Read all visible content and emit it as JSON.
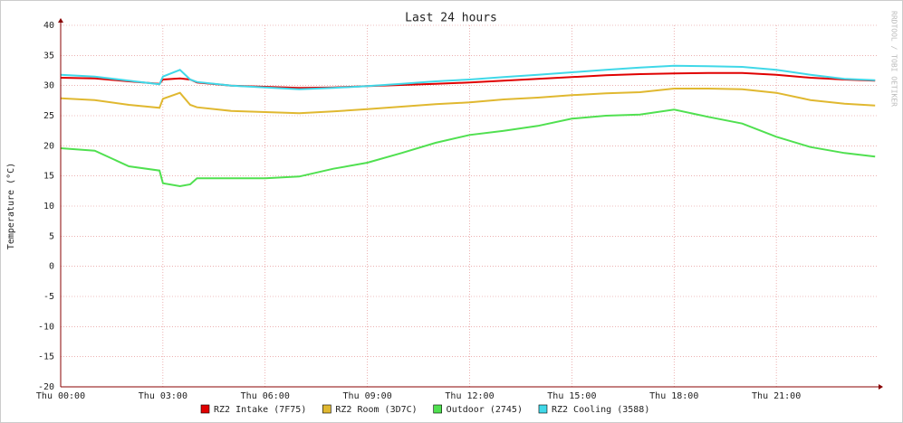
{
  "chart_data": {
    "type": "line",
    "title": "Last 24 hours",
    "ylabel": "Temperature (°C)",
    "watermark": "RRDTOOL / TOBI OETIKER",
    "x": [
      0,
      1,
      2,
      2.9,
      3,
      3.5,
      3.8,
      4,
      5,
      6,
      7,
      8,
      9,
      10,
      11,
      12,
      13,
      14,
      15,
      16,
      17,
      18,
      19,
      20,
      21,
      22,
      23,
      23.9
    ],
    "xlim": [
      0,
      24
    ],
    "xticks": [
      {
        "value": 0,
        "label": "Thu 00:00"
      },
      {
        "value": 3,
        "label": "Thu 03:00"
      },
      {
        "value": 6,
        "label": "Thu 06:00"
      },
      {
        "value": 9,
        "label": "Thu 09:00"
      },
      {
        "value": 12,
        "label": "Thu 12:00"
      },
      {
        "value": 15,
        "label": "Thu 15:00"
      },
      {
        "value": 18,
        "label": "Thu 18:00"
      },
      {
        "value": 21,
        "label": "Thu 21:00"
      }
    ],
    "ylim": [
      -20,
      40
    ],
    "yticks": [
      -20,
      -15,
      -10,
      -5,
      0,
      5,
      10,
      15,
      20,
      25,
      30,
      35,
      40
    ],
    "grid": true,
    "series": [
      {
        "name": "RZ2 Intake (7F75)",
        "color": "#e00000",
        "values": [
          31.3,
          31.2,
          30.7,
          30.3,
          31.0,
          31.2,
          31.0,
          30.5,
          30.0,
          29.8,
          29.6,
          29.7,
          29.9,
          30.1,
          30.3,
          30.5,
          30.8,
          31.1,
          31.4,
          31.7,
          31.9,
          32.0,
          32.1,
          32.1,
          31.8,
          31.3,
          31.0,
          30.8
        ]
      },
      {
        "name": "RZ2 Room (3D7C)",
        "color": "#e0b830",
        "values": [
          27.9,
          27.6,
          26.8,
          26.3,
          27.8,
          28.8,
          26.8,
          26.4,
          25.8,
          25.6,
          25.4,
          25.7,
          26.1,
          26.5,
          26.9,
          27.2,
          27.7,
          28.0,
          28.4,
          28.7,
          28.9,
          29.5,
          29.5,
          29.4,
          28.8,
          27.6,
          27.0,
          26.7
        ]
      },
      {
        "name": "Outdoor (2745)",
        "color": "#50e050",
        "values": [
          19.6,
          19.2,
          16.6,
          15.9,
          13.8,
          13.3,
          13.6,
          14.6,
          14.6,
          14.6,
          14.9,
          16.2,
          17.2,
          18.8,
          20.5,
          21.8,
          22.5,
          23.3,
          24.5,
          25.0,
          25.2,
          26.0,
          24.8,
          23.7,
          21.5,
          19.8,
          18.8,
          18.2
        ]
      },
      {
        "name": "RZ2 Cooling (3588)",
        "color": "#40d8e8",
        "values": [
          31.8,
          31.5,
          30.8,
          30.2,
          31.5,
          32.6,
          31.0,
          30.6,
          30.0,
          29.7,
          29.4,
          29.6,
          29.9,
          30.3,
          30.7,
          31.0,
          31.4,
          31.8,
          32.2,
          32.6,
          33.0,
          33.3,
          33.2,
          33.1,
          32.6,
          31.8,
          31.1,
          30.9
        ]
      }
    ]
  }
}
